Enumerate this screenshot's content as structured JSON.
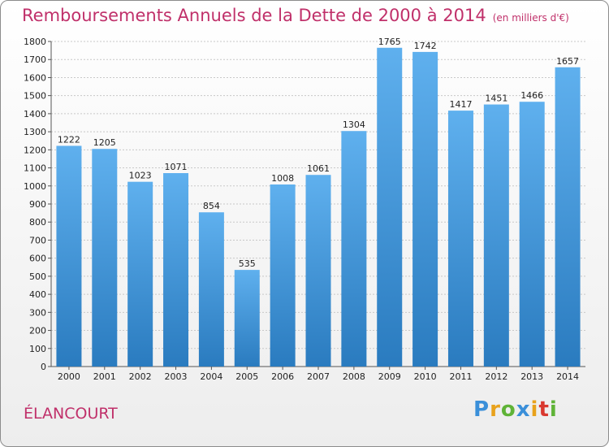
{
  "header": {
    "title": "Remboursements Annuels de la Dette de 2000 à 2014",
    "subtitle": "(en milliers d'€)"
  },
  "footer": {
    "commune": "ÉLANCOURT",
    "logo": "Proxiti"
  },
  "colors": {
    "title": "#c0306a",
    "bar_top": "#5fb0ee",
    "bar_bottom": "#2a7bbf"
  },
  "chart_data": {
    "type": "bar",
    "title": "Remboursements Annuels de la Dette de 2000 à 2014",
    "subtitle": "(en milliers d'€)",
    "categories": [
      "2000",
      "2001",
      "2002",
      "2003",
      "2004",
      "2005",
      "2006",
      "2007",
      "2008",
      "2009",
      "2010",
      "2011",
      "2012",
      "2013",
      "2014"
    ],
    "values": [
      1222,
      1205,
      1023,
      1071,
      854,
      535,
      1008,
      1061,
      1304,
      1765,
      1742,
      1417,
      1451,
      1466,
      1657
    ],
    "yticks": [
      "0",
      "100",
      "200",
      "300",
      "400",
      "500",
      "600",
      "700",
      "800",
      "900",
      "1000",
      "1100",
      "1200",
      "1300",
      "1400",
      "1500",
      "1600",
      "1700",
      "1800"
    ],
    "ylim": [
      0,
      1800
    ],
    "grid": true
  }
}
